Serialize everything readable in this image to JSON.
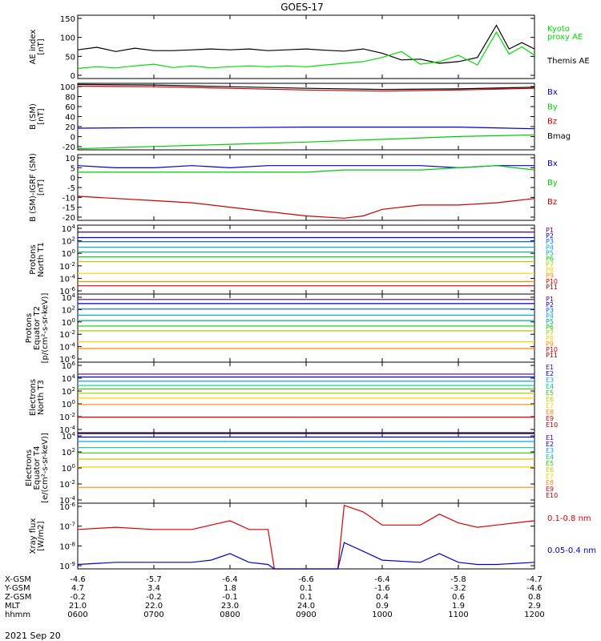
{
  "title": "GOES-17",
  "date_label": "2021 Sep 20",
  "colors": {
    "ae_kyoto": "#00dd00",
    "ae_themis": "#000000",
    "bx": "#0000cc",
    "by": "#00cc00",
    "bz": "#cc0000",
    "bmag": "#000000",
    "xray_long": "#dd0000",
    "xray_short": "#0000cc",
    "proton_channels": [
      "#000000",
      "#550088",
      "#0000cc",
      "#0066ff",
      "#00aaee",
      "#00aa88",
      "#00cc00",
      "#aacc00",
      "#ffcc00",
      "#ff8800",
      "#dd0000",
      "#990000"
    ],
    "electron_channels": [
      "#000000",
      "#550088",
      "#0000cc",
      "#00aaee",
      "#00cc88",
      "#33cc00",
      "#bbcc00",
      "#ffcc00",
      "#ff8800",
      "#dd0000",
      "#aa0000"
    ]
  },
  "time_axis": {
    "range_hhmm": [
      "0600",
      "1200"
    ],
    "rows": [
      {
        "label": "X-GSM",
        "values": [
          "-4.6",
          "-5.7",
          "-6.4",
          "-6.6",
          "-6.4",
          "-5.8",
          "-4.7"
        ]
      },
      {
        "label": "Y-GSM",
        "values": [
          "4.7",
          "3.4",
          "1.8",
          "0.1",
          "-1.6",
          "-3.2",
          "-4.6"
        ]
      },
      {
        "label": "Z-GSM",
        "values": [
          "-0.2",
          "-0.2",
          "-0.1",
          "0.1",
          "0.4",
          "0.6",
          "0.8"
        ]
      },
      {
        "label": "MLT",
        "values": [
          "21.0",
          "22.0",
          "23.0",
          "24.0",
          "0.9",
          "1.9",
          "2.9"
        ]
      },
      {
        "label": "hhmm",
        "values": [
          "0600",
          "0700",
          "0800",
          "0900",
          "1000",
          "1100",
          "1200"
        ]
      }
    ]
  },
  "panels": [
    {
      "id": "ae",
      "ylabel_lines": [
        "AE index",
        "[nT]"
      ],
      "yticks": [
        "150",
        "100",
        "50",
        "0"
      ],
      "legend": [
        {
          "text": "Kyoto",
          "color": "#00dd00"
        },
        {
          "text": "proxy AE",
          "color": "#00dd00"
        },
        {
          "text": "Themis AE",
          "color": "#000000"
        }
      ]
    },
    {
      "id": "bsm",
      "ylabel_lines": [
        "B (SM)",
        "[nT]"
      ],
      "yticks": [
        "100",
        "80",
        "60",
        "40",
        "20",
        "0",
        "-20"
      ],
      "legend": [
        {
          "text": "Bx",
          "color": "#0000cc"
        },
        {
          "text": "By",
          "color": "#00cc00"
        },
        {
          "text": "Bz",
          "color": "#cc0000"
        },
        {
          "text": "Bmag",
          "color": "#000000"
        }
      ]
    },
    {
      "id": "bigrf",
      "ylabel_lines": [
        "B (SM)-IGRF (SM)",
        "[nT]"
      ],
      "yticks": [
        "10",
        "5",
        "0",
        "-5",
        "-10",
        "-15",
        "-20"
      ],
      "legend": [
        {
          "text": "Bx",
          "color": "#0000cc"
        },
        {
          "text": "By",
          "color": "#00cc00"
        },
        {
          "text": "Bz",
          "color": "#cc0000"
        }
      ]
    },
    {
      "id": "protons_t1",
      "ylabel_lines": [
        "Protons",
        "North T1"
      ],
      "yticks": [
        "10^4",
        "10^2",
        "10^0",
        "10^-2",
        "10^-4",
        "10^-6"
      ],
      "legend_labels": [
        "P1",
        "P2",
        "P3",
        "P4",
        "P5",
        "P6",
        "P7",
        "P8",
        "P9",
        "P10",
        "P11"
      ]
    },
    {
      "id": "protons_t2",
      "ylabel_lines": [
        "Protons",
        "Equator T2",
        "[p/(cm²-s-sr-keV)]"
      ],
      "yticks": [
        "10^4",
        "10^2",
        "10^0",
        "10^-2",
        "10^-4",
        "10^-6"
      ],
      "legend_labels": [
        "P1",
        "P2",
        "P3",
        "P4",
        "P5",
        "P6",
        "P7",
        "P8",
        "P9",
        "P10",
        "P11"
      ]
    },
    {
      "id": "electrons_t3",
      "ylabel_lines": [
        "Electrons",
        "North T3"
      ],
      "yticks": [
        "10^6",
        "10^4",
        "10^2",
        "10^0",
        "10^-2",
        "10^-4"
      ],
      "legend_labels": [
        "E1",
        "E2",
        "E3",
        "E4",
        "E5",
        "E6",
        "E7",
        "E8",
        "E9",
        "E10"
      ]
    },
    {
      "id": "electrons_t4",
      "ylabel_lines": [
        "Electrons",
        "Equator T4",
        "[e/(cm²-s-sr-keV)]"
      ],
      "yticks": [
        "10^4",
        "10^2",
        "10^0",
        "10^-2",
        "10^-4"
      ],
      "legend_labels": [
        "E1",
        "E2",
        "E3",
        "E4",
        "E5",
        "E6",
        "E7",
        "E8",
        "E9",
        "E10"
      ]
    },
    {
      "id": "xray",
      "ylabel_lines": [
        "Xray flux",
        "[W/m2]"
      ],
      "yticks": [
        "10^-6",
        "10^-7",
        "10^-8",
        "10^-9"
      ],
      "legend": [
        {
          "text": "0.1-0.8 nm",
          "color": "#dd0000"
        },
        {
          "text": "0.05-0.4 nm",
          "color": "#0000cc"
        }
      ]
    }
  ],
  "chart_data": [
    {
      "type": "line",
      "panel": "ae",
      "xlim": [
        "0600",
        "1200"
      ],
      "ylim": [
        0,
        150
      ],
      "x": [
        "0600",
        "0615",
        "0630",
        "0645",
        "0700",
        "0715",
        "0730",
        "0745",
        "0800",
        "0815",
        "0830",
        "0845",
        "0900",
        "0915",
        "0930",
        "0945",
        "1000",
        "1015",
        "1030",
        "1045",
        "1100",
        "1115",
        "1130",
        "1140",
        "1150",
        "1200"
      ],
      "series": [
        {
          "name": "Themis AE",
          "color": "#000000",
          "values": [
            68,
            74,
            64,
            72,
            66,
            66,
            68,
            70,
            68,
            70,
            66,
            68,
            70,
            67,
            65,
            70,
            60,
            44,
            46,
            36,
            40,
            50,
            126,
            70,
            85,
            70
          ]
        },
        {
          "name": "Kyoto proxy AE",
          "color": "#00dd00",
          "values": [
            24,
            28,
            25,
            30,
            34,
            26,
            30,
            25,
            28,
            30,
            28,
            30,
            28,
            32,
            36,
            40,
            50,
            64,
            34,
            40,
            55,
            32,
            110,
            58,
            75,
            55
          ]
        }
      ]
    },
    {
      "type": "line",
      "panel": "bsm",
      "xlim": [
        "0600",
        "1200"
      ],
      "ylim": [
        -20,
        100
      ],
      "x": [
        "0600",
        "0700",
        "0800",
        "0900",
        "1000",
        "1100",
        "1200"
      ],
      "series": [
        {
          "name": "Bx",
          "color": "#0000cc",
          "values": [
            19,
            20,
            20,
            21,
            21,
            21,
            18
          ]
        },
        {
          "name": "By",
          "color": "#00cc00",
          "values": [
            -18,
            -14,
            -10,
            -6,
            -1,
            4,
            7
          ]
        },
        {
          "name": "Bz",
          "color": "#cc0000",
          "values": [
            95,
            94,
            91,
            88,
            86,
            88,
            91
          ]
        },
        {
          "name": "Bmag",
          "color": "#000000",
          "values": [
            98,
            97,
            94,
            91,
            89,
            90,
            93
          ]
        }
      ]
    },
    {
      "type": "line",
      "panel": "bigrf",
      "xlim": [
        "0600",
        "1200"
      ],
      "ylim": [
        -20,
        10
      ],
      "x": [
        "0600",
        "0630",
        "0700",
        "0730",
        "0800",
        "0830",
        "0900",
        "0930",
        "0945",
        "1000",
        "1030",
        "1100",
        "1130",
        "1200"
      ],
      "series": [
        {
          "name": "Bx",
          "color": "#0000cc",
          "values": [
            5,
            4,
            4,
            5,
            4,
            5,
            5,
            5,
            5,
            5,
            5,
            4,
            5,
            5
          ]
        },
        {
          "name": "By",
          "color": "#00cc00",
          "values": [
            2,
            2,
            2,
            2,
            2,
            2,
            2,
            3,
            3,
            3,
            3,
            4,
            5,
            3
          ]
        },
        {
          "name": "Bz",
          "color": "#cc0000",
          "values": [
            -9,
            -10,
            -11,
            -12,
            -14,
            -16,
            -18,
            -19,
            -18,
            -15,
            -13,
            -13,
            -12,
            -10
          ]
        }
      ]
    },
    {
      "type": "line",
      "panel": "protons_t1",
      "xlim": [
        "0600",
        "1200"
      ],
      "ylim": [
        "1e-6",
        "1e4"
      ],
      "yscale": "log",
      "series": [
        {
          "name": "P1",
          "log10_level": 3.0
        },
        {
          "name": "P2",
          "log10_level": 2.2
        },
        {
          "name": "P3",
          "log10_level": 1.6
        },
        {
          "name": "P4",
          "log10_level": 0.8
        },
        {
          "name": "P5",
          "log10_level": 0.1
        },
        {
          "name": "P6",
          "log10_level": -0.6
        },
        {
          "name": "P7",
          "log10_level": -1.3
        },
        {
          "name": "P8",
          "log10_level": -3.0
        },
        {
          "name": "P9",
          "log10_level": -4.2
        },
        {
          "name": "P10",
          "log10_level": -4.8
        }
      ]
    },
    {
      "type": "line",
      "panel": "protons_t2",
      "xlim": [
        "0600",
        "1200"
      ],
      "ylim": [
        "1e-6",
        "1e4"
      ],
      "yscale": "log",
      "series": [
        {
          "name": "P1",
          "log10_level": 3.2
        },
        {
          "name": "P2",
          "log10_level": 2.6
        },
        {
          "name": "P3",
          "log10_level": 1.8
        },
        {
          "name": "P4",
          "log10_level": 0.9
        },
        {
          "name": "P5",
          "log10_level": 0.1
        },
        {
          "name": "P6",
          "log10_level": -0.7
        },
        {
          "name": "P7",
          "log10_level": -1.4
        },
        {
          "name": "P8",
          "log10_level": -3.0
        },
        {
          "name": "P9",
          "log10_level": -4.0
        }
      ]
    },
    {
      "type": "line",
      "panel": "electrons_t3",
      "xlim": [
        "0600",
        "1200"
      ],
      "ylim": [
        "1e-4",
        "1e6"
      ],
      "yscale": "log",
      "series": [
        {
          "name": "E1",
          "log10_level": 4.3
        },
        {
          "name": "E2",
          "log10_level": 3.9
        },
        {
          "name": "E3",
          "log10_level": 3.3
        },
        {
          "name": "E4",
          "log10_level": 2.7
        },
        {
          "name": "E5",
          "log10_level": 2.2
        },
        {
          "name": "E6",
          "log10_level": 1.6
        },
        {
          "name": "E7",
          "log10_level": 0.9
        },
        {
          "name": "E8",
          "log10_level": 0.0
        },
        {
          "name": "E9",
          "log10_level": -1.8
        }
      ]
    },
    {
      "type": "line",
      "panel": "electrons_t4",
      "xlim": [
        "0600",
        "1200"
      ],
      "ylim": [
        "1e-4",
        "1e4"
      ],
      "yscale": "log",
      "series": [
        {
          "name": "E1",
          "log10_level": 3.9
        },
        {
          "name": "E2",
          "log10_level": 3.5
        },
        {
          "name": "E3",
          "log10_level": 3.0
        },
        {
          "name": "E4",
          "log10_level": 2.3
        },
        {
          "name": "E5",
          "log10_level": 1.7
        },
        {
          "name": "E6",
          "log10_level": 1.0
        },
        {
          "name": "E7",
          "log10_level": 0.1
        },
        {
          "name": "E8",
          "log10_level": -2.2
        }
      ]
    },
    {
      "type": "line",
      "panel": "xray",
      "xlim": [
        "0600",
        "1200"
      ],
      "ylim": [
        "1e-9",
        "1e-6"
      ],
      "yscale": "log",
      "x": [
        "0600",
        "0630",
        "0700",
        "0730",
        "0745",
        "0800",
        "0815",
        "0830",
        "0835",
        "0925",
        "0930",
        "0945",
        "1000",
        "1030",
        "1045",
        "1100",
        "1115",
        "1130",
        "1200"
      ],
      "series": [
        {
          "name": "0.1-0.8 nm",
          "color": "#dd0000",
          "log10_values": [
            -7.2,
            -7.1,
            -7.2,
            -7.2,
            -7.0,
            -6.8,
            -7.2,
            -7.2,
            -9.0,
            -9.0,
            -6.1,
            -6.4,
            -7.0,
            -7.0,
            -6.5,
            -6.9,
            -7.1,
            -7.0,
            -6.8
          ]
        },
        {
          "name": "0.05-0.4 nm",
          "color": "#0000cc",
          "log10_values": [
            -8.8,
            -8.7,
            -8.7,
            -8.7,
            -8.6,
            -8.3,
            -8.7,
            -8.8,
            -9.0,
            -9.0,
            -7.8,
            -8.2,
            -8.6,
            -8.7,
            -8.3,
            -8.7,
            -8.8,
            -8.8,
            -8.7
          ]
        }
      ]
    }
  ]
}
